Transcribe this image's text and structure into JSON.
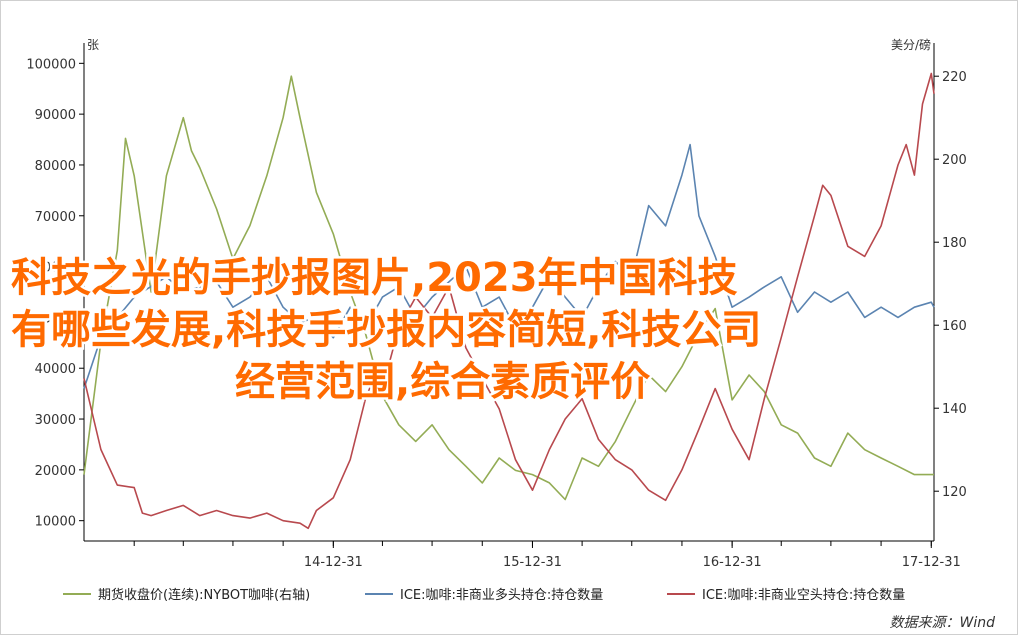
{
  "overlay_title": {
    "lines": [
      "科技之光的手抄报图片,2023年中国科技",
      "有哪些发展,科技手抄报内容简短,科技公司",
      "经营范围,综合素质评价"
    ],
    "color": "#ff6a00"
  },
  "source": "数据来源：Wind",
  "chart_data": {
    "type": "line",
    "left_unit": "张",
    "right_unit": "美分/磅",
    "x_ticks": [
      "14-12-31",
      "15-12-31",
      "16-12-31",
      "17-12-31"
    ],
    "x_range": [
      "2013-09-30",
      "2018-01-05"
    ],
    "y_left": {
      "range": [
        6000,
        104000
      ],
      "ticks": [
        "10000",
        "20000",
        "30000",
        "40000",
        "50000",
        "60000",
        "70000",
        "80000",
        "90000",
        "100000"
      ]
    },
    "y_right": {
      "range": [
        108,
        228
      ],
      "ticks": [
        "120",
        "140",
        "160",
        "180",
        "200",
        "220"
      ]
    },
    "grid": false,
    "legend_position": "bottom",
    "series": [
      {
        "name": "期货收盘价(连续):NYBOT咖啡(右轴)",
        "axis": "right",
        "color": "#93ac55",
        "points": [
          [
            "2013-09-30",
            124
          ],
          [
            "2013-10-31",
            156
          ],
          [
            "2013-11-30",
            178
          ],
          [
            "2013-12-15",
            205
          ],
          [
            "2013-12-31",
            196
          ],
          [
            "2014-01-31",
            168
          ],
          [
            "2014-02-28",
            196
          ],
          [
            "2014-03-31",
            210
          ],
          [
            "2014-04-15",
            202
          ],
          [
            "2014-04-30",
            198
          ],
          [
            "2014-05-31",
            188
          ],
          [
            "2014-06-30",
            176
          ],
          [
            "2014-07-31",
            184
          ],
          [
            "2014-08-31",
            196
          ],
          [
            "2014-09-30",
            210
          ],
          [
            "2014-10-15",
            220
          ],
          [
            "2014-10-31",
            210
          ],
          [
            "2014-11-30",
            192
          ],
          [
            "2014-12-31",
            182
          ],
          [
            "2015-01-31",
            168
          ],
          [
            "2015-02-28",
            158
          ],
          [
            "2015-03-31",
            143
          ],
          [
            "2015-04-30",
            136
          ],
          [
            "2015-05-31",
            132
          ],
          [
            "2015-06-30",
            136
          ],
          [
            "2015-07-31",
            130
          ],
          [
            "2015-08-31",
            126
          ],
          [
            "2015-09-30",
            122
          ],
          [
            "2015-10-31",
            128
          ],
          [
            "2015-11-30",
            125
          ],
          [
            "2015-12-31",
            124
          ],
          [
            "2016-01-31",
            122
          ],
          [
            "2016-02-29",
            118
          ],
          [
            "2016-03-31",
            128
          ],
          [
            "2016-04-30",
            126
          ],
          [
            "2016-05-31",
            132
          ],
          [
            "2016-06-30",
            140
          ],
          [
            "2016-07-31",
            148
          ],
          [
            "2016-08-31",
            144
          ],
          [
            "2016-09-30",
            150
          ],
          [
            "2016-10-31",
            158
          ],
          [
            "2016-11-30",
            164
          ],
          [
            "2016-12-31",
            142
          ],
          [
            "2017-01-31",
            148
          ],
          [
            "2017-02-28",
            144
          ],
          [
            "2017-03-31",
            136
          ],
          [
            "2017-04-30",
            134
          ],
          [
            "2017-05-31",
            128
          ],
          [
            "2017-06-30",
            126
          ],
          [
            "2017-07-31",
            134
          ],
          [
            "2017-08-31",
            130
          ],
          [
            "2017-09-30",
            128
          ],
          [
            "2017-10-31",
            126
          ],
          [
            "2017-11-30",
            124
          ],
          [
            "2017-12-31",
            124
          ],
          [
            "2018-01-05",
            124
          ]
        ]
      },
      {
        "name": "ICE:咖啡:非商业多头持仓:持仓数量",
        "axis": "left",
        "color": "#5b84b1",
        "points": [
          [
            "2013-09-30",
            36000
          ],
          [
            "2013-10-31",
            46000
          ],
          [
            "2013-12-31",
            54000
          ],
          [
            "2014-02-28",
            58000
          ],
          [
            "2014-03-31",
            55000
          ],
          [
            "2014-05-31",
            57000
          ],
          [
            "2014-06-30",
            52000
          ],
          [
            "2014-07-31",
            54000
          ],
          [
            "2014-08-31",
            58000
          ],
          [
            "2014-09-30",
            52000
          ],
          [
            "2014-10-31",
            49000
          ],
          [
            "2014-11-30",
            50000
          ],
          [
            "2014-12-31",
            46000
          ],
          [
            "2015-01-31",
            52000
          ],
          [
            "2015-02-28",
            48000
          ],
          [
            "2015-03-31",
            54000
          ],
          [
            "2015-04-30",
            56000
          ],
          [
            "2015-05-31",
            50000
          ],
          [
            "2015-06-30",
            54000
          ],
          [
            "2015-07-31",
            57000
          ],
          [
            "2015-08-31",
            60000
          ],
          [
            "2015-09-30",
            52000
          ],
          [
            "2015-10-31",
            54000
          ],
          [
            "2015-11-30",
            48000
          ],
          [
            "2015-12-31",
            52000
          ],
          [
            "2016-01-31",
            58000
          ],
          [
            "2016-02-29",
            54000
          ],
          [
            "2016-03-31",
            50000
          ],
          [
            "2016-04-30",
            56000
          ],
          [
            "2016-05-31",
            61000
          ],
          [
            "2016-06-30",
            58000
          ],
          [
            "2016-07-31",
            72000
          ],
          [
            "2016-08-31",
            68000
          ],
          [
            "2016-09-30",
            78000
          ],
          [
            "2016-10-15",
            84000
          ],
          [
            "2016-10-31",
            70000
          ],
          [
            "2016-11-30",
            62000
          ],
          [
            "2016-12-31",
            52000
          ],
          [
            "2017-01-31",
            54000
          ],
          [
            "2017-02-28",
            56000
          ],
          [
            "2017-03-31",
            58000
          ],
          [
            "2017-04-30",
            51000
          ],
          [
            "2017-05-31",
            55000
          ],
          [
            "2017-06-30",
            53000
          ],
          [
            "2017-07-31",
            55000
          ],
          [
            "2017-08-31",
            50000
          ],
          [
            "2017-09-30",
            52000
          ],
          [
            "2017-10-31",
            50000
          ],
          [
            "2017-11-30",
            52000
          ],
          [
            "2017-12-31",
            53000
          ],
          [
            "2018-01-05",
            52000
          ]
        ]
      },
      {
        "name": "ICE:咖啡:非商业空头持仓:持仓数量",
        "axis": "left",
        "color": "#b8494e",
        "points": [
          [
            "2013-09-30",
            38000
          ],
          [
            "2013-10-31",
            24000
          ],
          [
            "2013-11-30",
            17000
          ],
          [
            "2013-12-31",
            16500
          ],
          [
            "2014-01-15",
            11500
          ],
          [
            "2014-01-31",
            11000
          ],
          [
            "2014-02-28",
            12000
          ],
          [
            "2014-03-31",
            13000
          ],
          [
            "2014-04-30",
            11000
          ],
          [
            "2014-05-31",
            12000
          ],
          [
            "2014-06-30",
            11000
          ],
          [
            "2014-07-31",
            10500
          ],
          [
            "2014-08-31",
            11500
          ],
          [
            "2014-09-30",
            10000
          ],
          [
            "2014-10-31",
            9500
          ],
          [
            "2014-11-15",
            8500
          ],
          [
            "2014-11-30",
            12000
          ],
          [
            "2014-12-31",
            14500
          ],
          [
            "2015-01-31",
            22000
          ],
          [
            "2015-02-28",
            34000
          ],
          [
            "2015-03-15",
            38000
          ],
          [
            "2015-03-31",
            36000
          ],
          [
            "2015-04-30",
            48000
          ],
          [
            "2015-05-31",
            54000
          ],
          [
            "2015-06-30",
            50000
          ],
          [
            "2015-07-31",
            56000
          ],
          [
            "2015-08-31",
            44000
          ],
          [
            "2015-09-30",
            38000
          ],
          [
            "2015-10-31",
            32000
          ],
          [
            "2015-11-30",
            22000
          ],
          [
            "2015-12-31",
            16000
          ],
          [
            "2016-01-31",
            24000
          ],
          [
            "2016-02-29",
            30000
          ],
          [
            "2016-03-31",
            34000
          ],
          [
            "2016-04-30",
            26000
          ],
          [
            "2016-05-31",
            22000
          ],
          [
            "2016-06-30",
            20000
          ],
          [
            "2016-07-31",
            16000
          ],
          [
            "2016-08-31",
            14000
          ],
          [
            "2016-09-30",
            20000
          ],
          [
            "2016-10-31",
            28000
          ],
          [
            "2016-11-30",
            36000
          ],
          [
            "2016-12-31",
            28000
          ],
          [
            "2017-01-31",
            22000
          ],
          [
            "2017-02-28",
            34000
          ],
          [
            "2017-03-31",
            46000
          ],
          [
            "2017-04-30",
            58000
          ],
          [
            "2017-05-31",
            70000
          ],
          [
            "2017-06-15",
            76000
          ],
          [
            "2017-06-30",
            74000
          ],
          [
            "2017-07-31",
            64000
          ],
          [
            "2017-08-31",
            62000
          ],
          [
            "2017-09-30",
            68000
          ],
          [
            "2017-10-31",
            80000
          ],
          [
            "2017-11-15",
            84000
          ],
          [
            "2017-11-30",
            78000
          ],
          [
            "2017-12-15",
            92000
          ],
          [
            "2017-12-31",
            98000
          ],
          [
            "2018-01-05",
            94000
          ]
        ]
      }
    ]
  }
}
